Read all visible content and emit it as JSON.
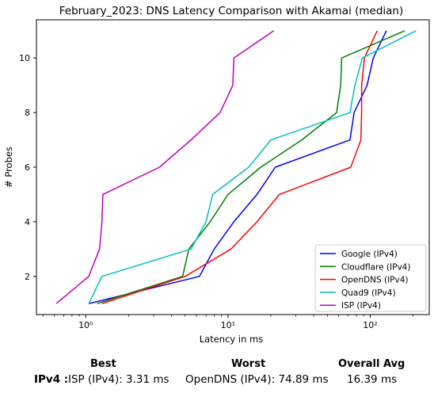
{
  "chart_data": {
    "type": "line",
    "title": "February_2023: DNS Latency Comparison with Akamai (median)",
    "xlabel": "Latency in ms",
    "ylabel": "# Probes",
    "xscale": "log",
    "xlim": [
      0.45,
      260
    ],
    "ylim": [
      0.6,
      11.4
    ],
    "x_ticks": [
      1,
      10,
      100
    ],
    "x_tick_labels": [
      "10⁰",
      "10¹",
      "10²"
    ],
    "y_ticks": [
      2,
      4,
      6,
      8,
      10
    ],
    "legend_position": "lower right",
    "series": [
      {
        "name": "Google (IPv4)",
        "color": "#0000ff",
        "points": [
          [
            1.05,
            1
          ],
          [
            6.3,
            2
          ],
          [
            8,
            3
          ],
          [
            11,
            4
          ],
          [
            16,
            5
          ],
          [
            21.5,
            6
          ],
          [
            72,
            7
          ],
          [
            77,
            8
          ],
          [
            95,
            9
          ],
          [
            105,
            10
          ],
          [
            130,
            11
          ]
        ]
      },
      {
        "name": "Cloudflare (IPv4)",
        "color": "#008000",
        "points": [
          [
            1.2,
            1
          ],
          [
            4.8,
            2
          ],
          [
            5.3,
            3
          ],
          [
            7.5,
            4
          ],
          [
            10,
            5
          ],
          [
            17,
            6
          ],
          [
            33,
            7
          ],
          [
            58,
            8
          ],
          [
            62,
            9
          ],
          [
            63,
            10
          ],
          [
            175,
            11
          ]
        ]
      },
      {
        "name": "OpenDNS (IPv4)",
        "color": "#ff0000",
        "points": [
          [
            1.3,
            1
          ],
          [
            5,
            2
          ],
          [
            10.5,
            3
          ],
          [
            16,
            4
          ],
          [
            23,
            5
          ],
          [
            73,
            6
          ],
          [
            86,
            7
          ],
          [
            87,
            8
          ],
          [
            87,
            9
          ],
          [
            91,
            10
          ],
          [
            112,
            11
          ]
        ]
      },
      {
        "name": "Quad9 (IPv4)",
        "color": "#00bfbf",
        "points": [
          [
            1.05,
            1
          ],
          [
            1.3,
            2
          ],
          [
            5.5,
            3
          ],
          [
            7,
            4
          ],
          [
            7.8,
            5
          ],
          [
            14,
            6
          ],
          [
            20,
            7
          ],
          [
            72,
            8
          ],
          [
            78,
            9
          ],
          [
            88,
            10
          ],
          [
            210,
            11
          ]
        ]
      },
      {
        "name": "ISP (IPv4)",
        "color": "#bf00bf",
        "points": [
          [
            0.62,
            1
          ],
          [
            1.05,
            2
          ],
          [
            1.25,
            3
          ],
          [
            1.3,
            4
          ],
          [
            1.32,
            5
          ],
          [
            3.3,
            6
          ],
          [
            5.5,
            7
          ],
          [
            8.8,
            8
          ],
          [
            10.8,
            9
          ],
          [
            11,
            10
          ],
          [
            21,
            11
          ]
        ]
      }
    ]
  },
  "summary": {
    "best_label": "Best",
    "worst_label": "Worst",
    "avg_label": "Overall Avg",
    "row_label": "IPv4 :",
    "best_value": "ISP (IPv4): 3.31 ms",
    "worst_value": "OpenDNS (IPv4): 74.89 ms",
    "avg_value": "16.39 ms"
  }
}
